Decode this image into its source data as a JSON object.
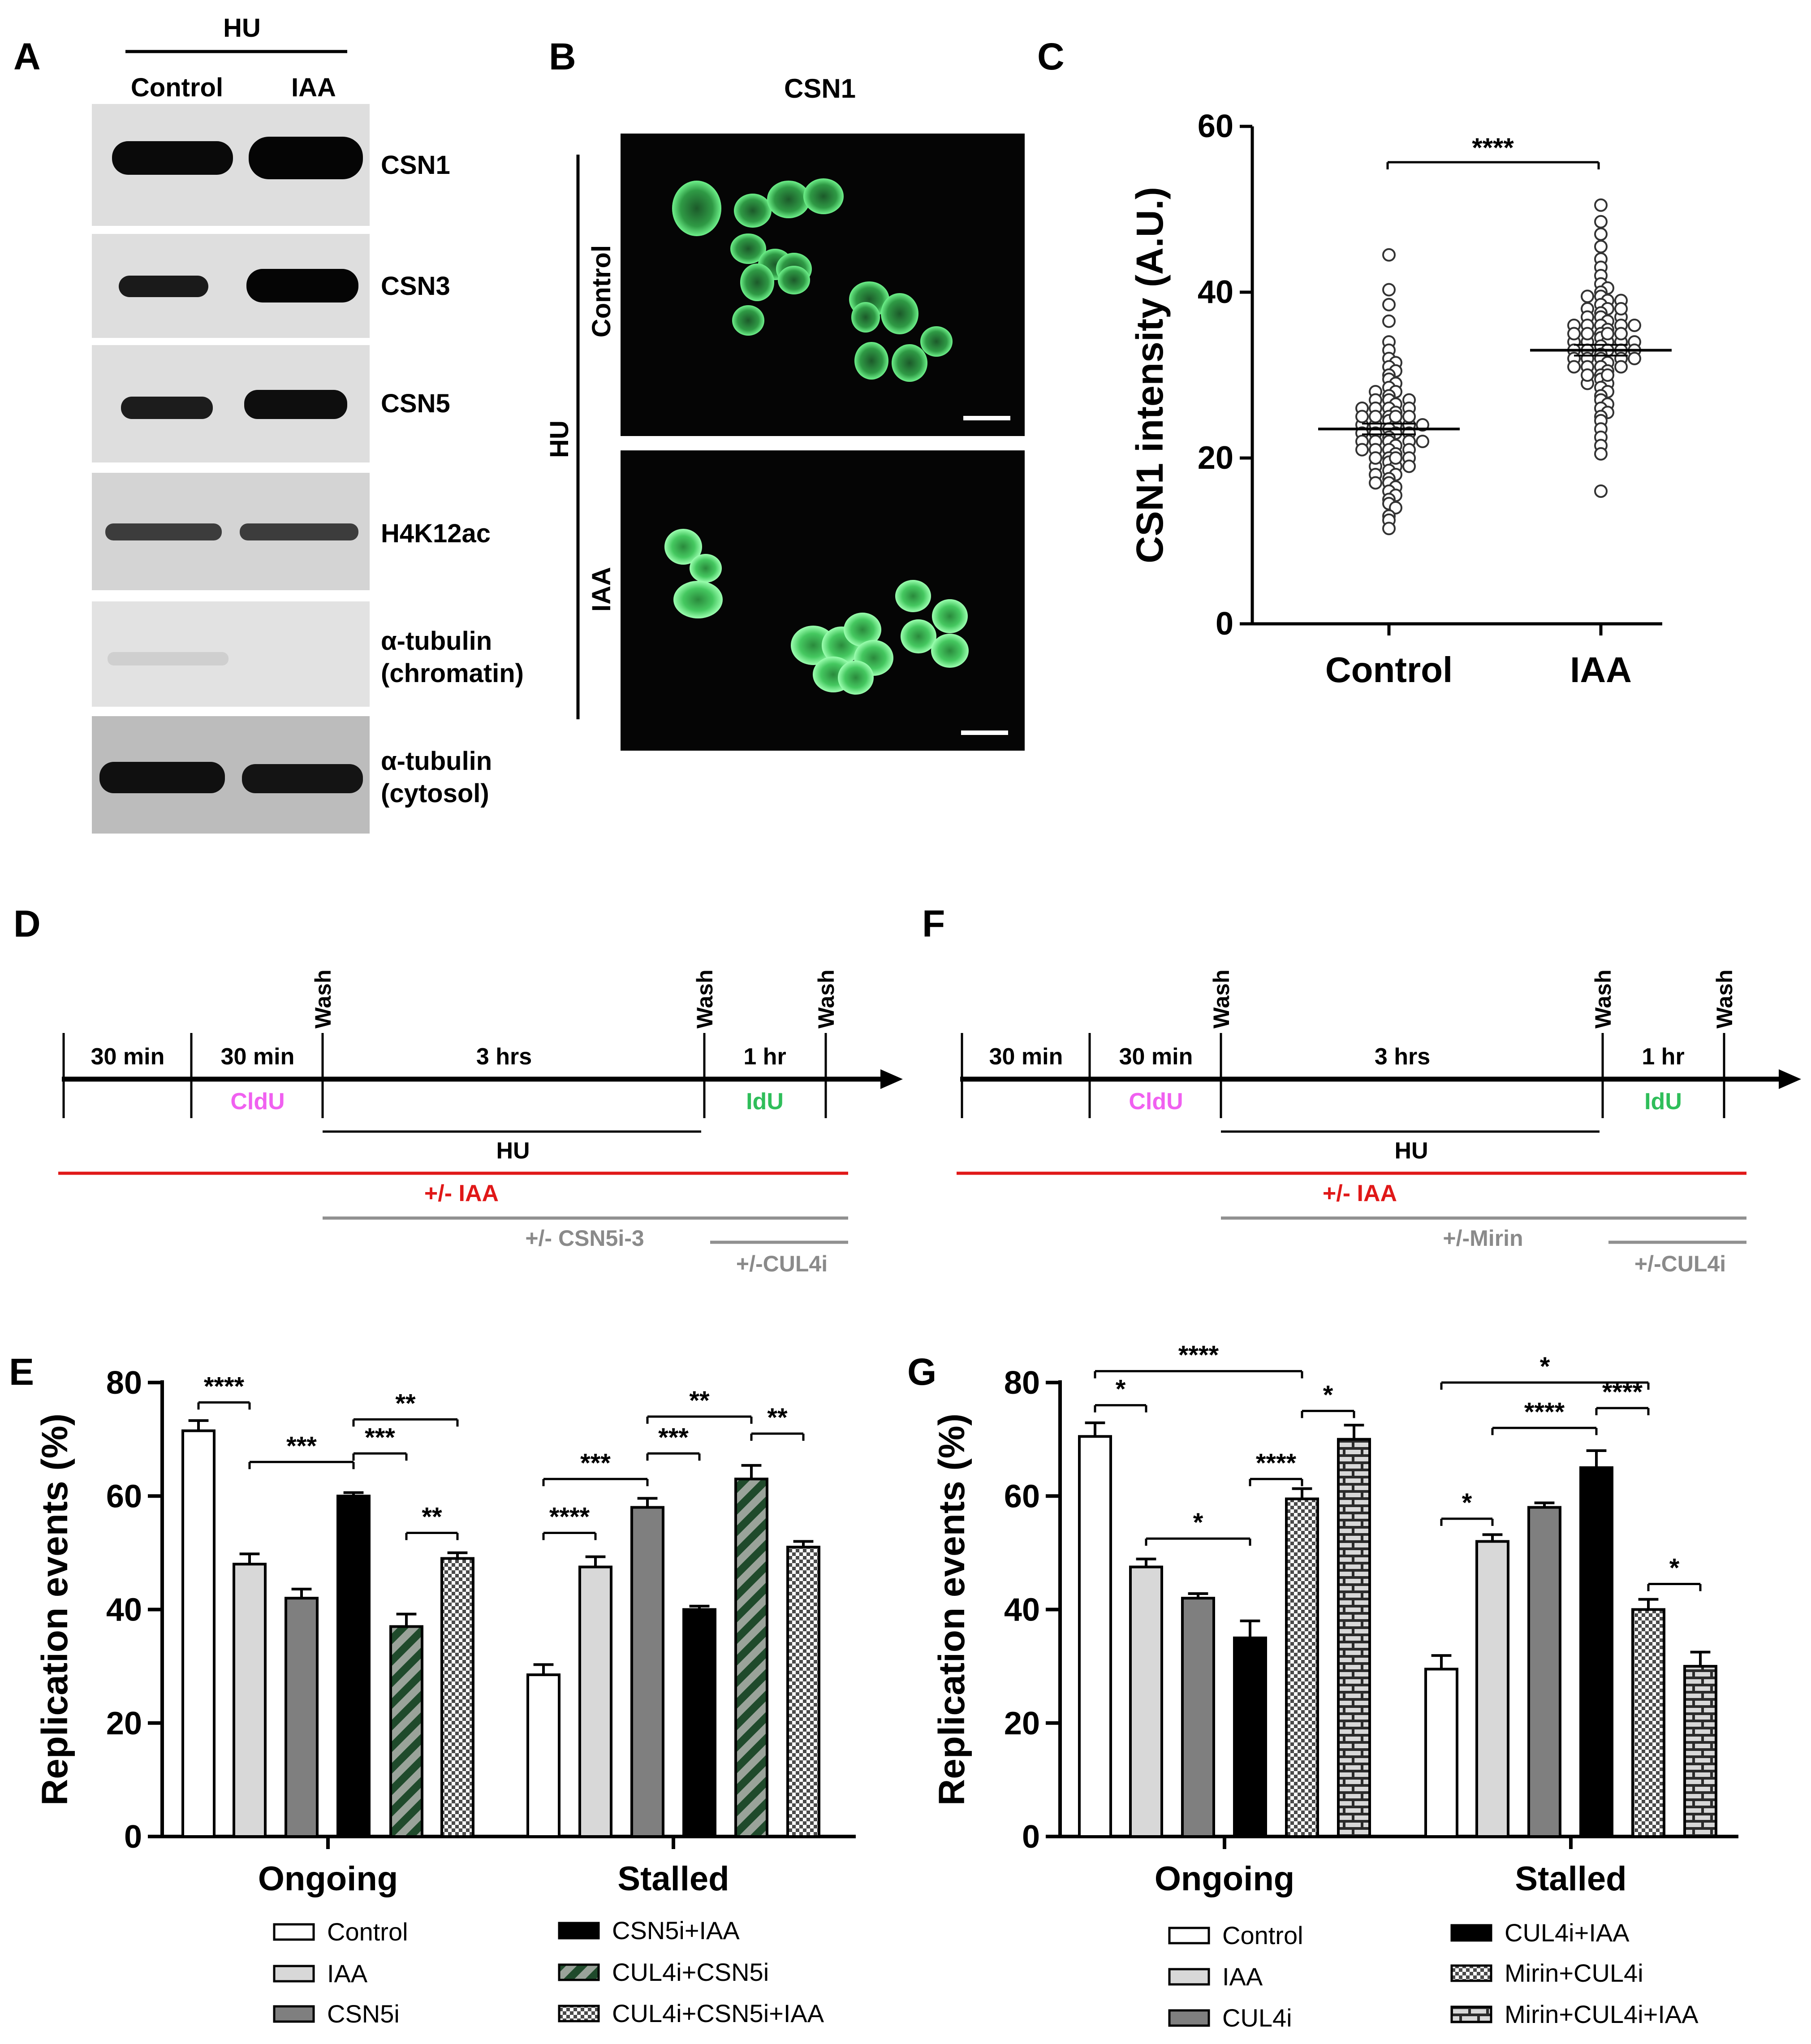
{
  "panels": {
    "A": "A",
    "B": "B",
    "C": "C",
    "D": "D",
    "E": "E",
    "F": "F",
    "G": "G"
  },
  "panel_a": {
    "treatment_label": "HU",
    "columns": [
      "Control",
      "IAA"
    ],
    "blots": [
      "CSN1",
      "CSN3",
      "CSN5",
      "H4K12ac"
    ],
    "tubulin_chromatin": [
      "α-tubulin",
      "(chromatin)"
    ],
    "tubulin_cytosol": [
      "α-tubulin",
      "(cytosol)"
    ]
  },
  "panel_b": {
    "title": "CSN1",
    "group_label": "HU",
    "rows": [
      "Control",
      "IAA"
    ],
    "title_color": "#2fbe5a"
  },
  "panel_d": {
    "segments": [
      "30 min",
      "30 min",
      "3 hrs",
      "1 hr"
    ],
    "wash": "Wash",
    "cldu": "CldU",
    "idu": "IdU",
    "hu": "HU",
    "iaa": "+/- IAA",
    "drug1": "+/- CSN5i-3",
    "drug2": "+/-CUL4i",
    "colors": {
      "cldu": "#f060f0",
      "idu": "#2fbe5a",
      "iaa": "#e01818",
      "gray": "#909090"
    }
  },
  "panel_f": {
    "segments": [
      "30 min",
      "30 min",
      "3 hrs",
      "1 hr"
    ],
    "wash": "Wash",
    "cldu": "CldU",
    "idu": "IdU",
    "hu": "HU",
    "iaa": "+/- IAA",
    "drug1": "+/-Mirin",
    "drug2": "+/-CUL4i"
  },
  "chart_data": [
    {
      "id": "C",
      "type": "scatter",
      "ylabel": "CSN1 intensity (A.U.)",
      "categories": [
        "Control",
        "IAA"
      ],
      "ylim": [
        0,
        60
      ],
      "yticks": [
        0,
        20,
        40,
        60
      ],
      "means": [
        23.5,
        33
      ],
      "significance": "****",
      "points": [
        [
          44.5,
          40.3,
          38.5,
          36.5,
          34,
          33,
          32,
          31.5,
          31,
          30.5,
          30,
          29.5,
          29,
          28.5,
          28,
          27.5,
          27,
          26.5,
          26,
          25.5,
          25,
          24.5,
          24,
          23.5,
          23,
          22.5,
          22,
          21.5,
          21,
          20.5,
          20,
          19.5,
          19,
          18.5,
          18,
          17.5,
          17,
          16.5,
          16,
          15.5,
          15,
          14.5,
          14,
          13,
          12.5,
          11.5,
          28,
          27,
          26,
          25,
          24,
          23,
          22,
          21,
          20,
          19,
          25,
          24,
          23,
          22,
          21,
          20,
          27,
          26,
          25,
          24,
          23,
          22,
          21,
          20,
          19,
          18,
          17,
          26,
          25,
          24,
          22
        ],
        [
          50.5,
          48.5,
          47,
          45.5,
          44,
          43,
          42,
          41,
          40.5,
          40,
          39.5,
          39,
          38.5,
          38,
          37.5,
          37,
          36.5,
          36,
          35.5,
          35,
          34.5,
          34,
          33.5,
          33,
          32.5,
          32,
          31.5,
          31,
          30.5,
          30,
          29.5,
          29,
          28.5,
          28,
          27.5,
          27,
          26.5,
          26,
          25.5,
          25,
          24.5,
          23.5,
          22.5,
          21.5,
          20.5,
          16,
          39.5,
          39,
          38,
          37,
          36,
          35,
          34,
          33,
          32,
          31,
          30,
          29,
          37,
          36,
          35,
          34,
          33,
          32,
          31,
          30,
          36,
          35,
          34,
          33,
          32,
          31,
          34,
          33,
          32,
          38,
          36,
          35
        ]
      ]
    },
    {
      "id": "E",
      "type": "bar",
      "ylabel": "Replication events (%)",
      "categories": [
        "Ongoing",
        "Stalled"
      ],
      "ylim": [
        0,
        80
      ],
      "yticks": [
        0,
        20,
        40,
        60,
        80
      ],
      "series": [
        {
          "name": "Control",
          "values": [
            71.5,
            28.5
          ],
          "err": [
            1.8,
            1.8
          ]
        },
        {
          "name": "IAA",
          "values": [
            48,
            47.5
          ],
          "err": [
            1.8,
            1.8
          ]
        },
        {
          "name": "CSN5i",
          "values": [
            42,
            58
          ],
          "err": [
            1.6,
            1.6
          ]
        },
        {
          "name": "CSN5i+IAA",
          "values": [
            60,
            40
          ],
          "err": [
            0.6,
            0.6
          ]
        },
        {
          "name": "CUL4i+CSN5i",
          "values": [
            37,
            63
          ],
          "err": [
            2.2,
            2.4
          ]
        },
        {
          "name": "CUL4i+CSN5i+IAA",
          "values": [
            49,
            51
          ],
          "err": [
            1,
            1
          ]
        }
      ],
      "significance": [
        {
          "label": "****"
        },
        {
          "label": "***"
        },
        {
          "label": "***"
        },
        {
          "label": "**"
        },
        {
          "label": "**"
        },
        {
          "label": "****"
        },
        {
          "label": "***"
        },
        {
          "label": "***"
        },
        {
          "label": "**"
        },
        {
          "label": "**"
        }
      ]
    },
    {
      "id": "G",
      "type": "bar",
      "ylabel": "Replication events (%)",
      "categories": [
        "Ongoing",
        "Stalled"
      ],
      "ylim": [
        0,
        80
      ],
      "yticks": [
        0,
        20,
        40,
        60,
        80
      ],
      "series": [
        {
          "name": "Control",
          "values": [
            70.5,
            29.5
          ],
          "err": [
            2.4,
            2.4
          ]
        },
        {
          "name": "IAA",
          "values": [
            47.5,
            52
          ],
          "err": [
            1.4,
            1.2
          ]
        },
        {
          "name": "CUL4i",
          "values": [
            42,
            58
          ],
          "err": [
            0.8,
            0.8
          ]
        },
        {
          "name": "CUL4i+IAA",
          "values": [
            35,
            65
          ],
          "err": [
            3,
            3
          ]
        },
        {
          "name": "Mirin+CUL4i",
          "values": [
            59.5,
            40
          ],
          "err": [
            1.8,
            1.8
          ]
        },
        {
          "name": "Mirin+CUL4i+IAA",
          "values": [
            70,
            30
          ],
          "err": [
            2.5,
            2.5
          ]
        }
      ],
      "significance": [
        {
          "label": "*"
        },
        {
          "label": "****"
        },
        {
          "label": "*"
        },
        {
          "label": "****"
        },
        {
          "label": "*"
        },
        {
          "label": "*"
        },
        {
          "label": "*"
        },
        {
          "label": "****"
        },
        {
          "label": "****"
        },
        {
          "label": "*"
        }
      ]
    }
  ]
}
